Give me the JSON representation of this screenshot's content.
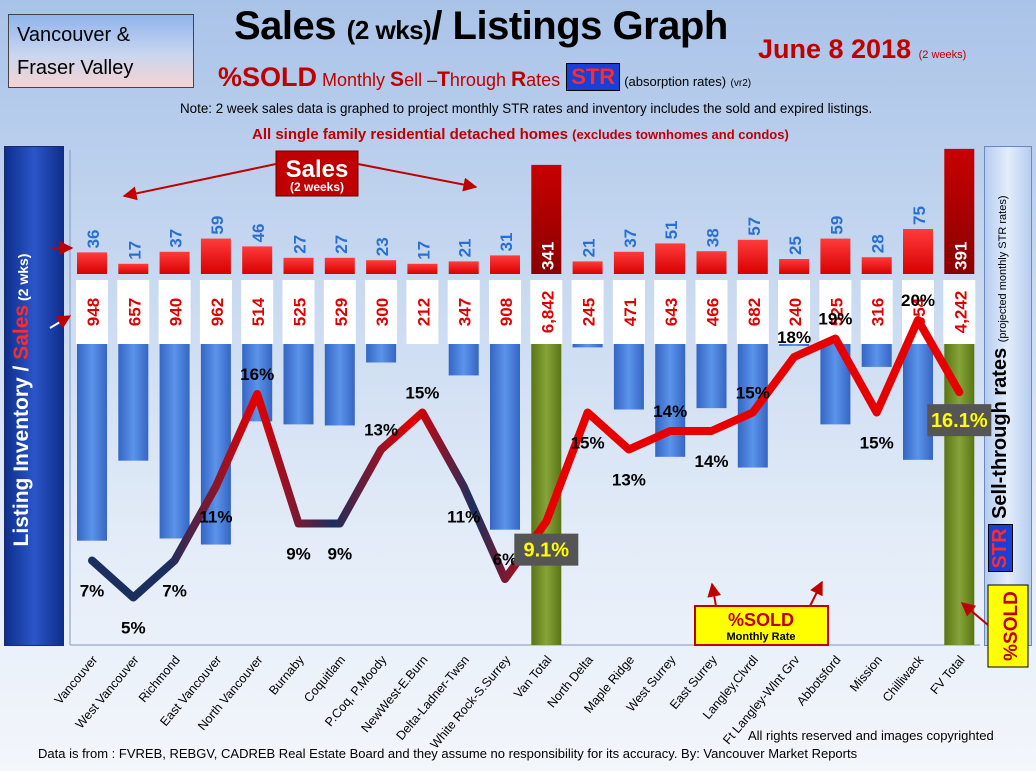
{
  "region": {
    "line1": "Vancouver &",
    "line2": "Fraser Valley"
  },
  "title": {
    "main": "Sales",
    "paren": "(2 wks)",
    "rest": "/ Listings Graph"
  },
  "date": {
    "main": "June 8 2018",
    "sub": "(2 weeks)"
  },
  "subtitle": {
    "pct_sold": "%SOLD",
    "s1": " Monthly ",
    "S": "S",
    "ell": "ell –",
    "T": "T",
    "hrough": "hrough ",
    "R": "R",
    "ates": "ates",
    "str": "STR",
    "abs": "(absorption rates)",
    "ver": "(vr2)"
  },
  "note": "Note: 2 week sales data is graphed to project monthly STR rates and inventory includes the sold and expired listings.",
  "detached": {
    "main": "All single family residential detached homes",
    "sub": "(excludes townhomes and condos)"
  },
  "left_axis": {
    "a": "Listing Inventory / ",
    "b": "Sales",
    "c": " (2 wks)"
  },
  "right_axis": {
    "str": "STR",
    "a": " Sell-through rates ",
    "b": "(projected monthly STR rates)",
    "c": "%SOLD"
  },
  "callouts": {
    "sales": "Sales",
    "sales_sub": "(2 weeks)",
    "pct": "%SOLD",
    "pct_sub": "Monthly Rate"
  },
  "footer": {
    "rights": "All rights reserved and  images copyrighted",
    "source": "Data is from : FVREB, REBGV, CADREB Real Estate Board and they assume no responsibility for its accuracy. By: Vancouver Market Reports"
  },
  "colors": {
    "sales": "#ff0000",
    "sales_total": "#c40000",
    "listings": "#3d7bd8",
    "total_listings": "#6f8a1e",
    "low": "#1a2f5e",
    "high": "#e60000"
  },
  "chart_data": {
    "type": "bar",
    "categories": [
      "Vancouver",
      "West Vancouver",
      "Richmond",
      "East Vancouver",
      "North Vancouver",
      "Burnaby",
      "Coquitlam",
      "P.Coq, P.Moody",
      "NewWest-E.Burn",
      "Delta-Ladner-Twsn",
      "White Rock-S.Surrey",
      "Van Total",
      "North Delta",
      "Maple Ridge",
      "West Surrey",
      "East Surrey",
      "Langley,Clvrdl",
      "Ft Langley-Wlnt Grv",
      "Abbotsford",
      "Mission",
      "Chilliwack",
      "FV Total"
    ],
    "series": [
      {
        "name": "Sales",
        "values": [
          36,
          17,
          37,
          59,
          46,
          27,
          27,
          23,
          17,
          21,
          31,
          341,
          21,
          37,
          51,
          38,
          57,
          25,
          59,
          28,
          75,
          391
        ]
      },
      {
        "name": "Listing Inventory",
        "values": [
          948,
          657,
          940,
          962,
          514,
          525,
          529,
          300,
          212,
          347,
          908,
          6842,
          245,
          471,
          643,
          466,
          682,
          240,
          525,
          316,
          654,
          4242
        ]
      },
      {
        "name": "%SOLD",
        "values": [
          7,
          5,
          7,
          11,
          16,
          9,
          9,
          13,
          15,
          11,
          6,
          9.1,
          15,
          13,
          14,
          14,
          15,
          18,
          19,
          15,
          20,
          16.1
        ]
      }
    ],
    "labels": {
      "sales": [
        "36",
        "17",
        "37",
        "59",
        "46",
        "27",
        "27",
        "23",
        "17",
        "21",
        "31",
        "341",
        "21",
        "37",
        "51",
        "38",
        "57",
        "25",
        "59",
        "28",
        "75",
        "391"
      ],
      "listings": [
        "948",
        "657",
        "940",
        "962",
        "514",
        "525",
        "529",
        "300",
        "212",
        "347",
        "908",
        "6,842",
        "245",
        "471",
        "643",
        "466",
        "682",
        "240",
        "525",
        "316",
        "654",
        "4,242"
      ],
      "pct": [
        "7%",
        "5%",
        "7%",
        "11%",
        "16%",
        "9%",
        "9%",
        "13%",
        "15%",
        "11%",
        "6%",
        "9.1%",
        "15%",
        "13%",
        "14%",
        "14%",
        "15%",
        "18%",
        "19%",
        "15%",
        "20%",
        "16.1%"
      ]
    }
  }
}
